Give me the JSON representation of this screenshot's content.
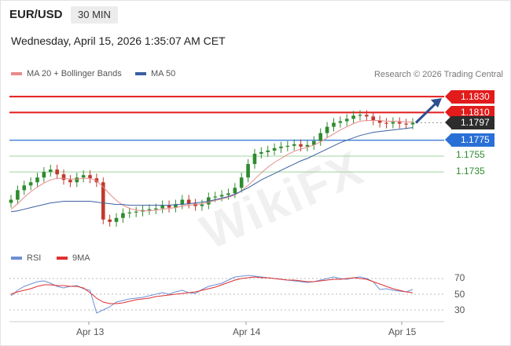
{
  "header": {
    "pair": "EUR/USD",
    "timeframe": "30 MIN",
    "datetime": "Wednesday, April 15, 2026 1:35:07 AM CET",
    "research": "Research © 2026 Trading Central"
  },
  "legend": {
    "ma20": "MA 20 + Bollinger Bands",
    "ma50": "MA 50",
    "ma20_color": "#e88a8a",
    "ma50_color": "#3a5fa0"
  },
  "rsi_legend": {
    "rsi": "RSI",
    "ma9": "9MA",
    "rsi_color": "#6d8fd6",
    "ma9_color": "#e03030"
  },
  "watermark": "WikiFX",
  "colors": {
    "resistance": "#e21b1b",
    "support": "#2a6fd6",
    "target_green": "#2e8b2e",
    "last_price_bg": "#2d2d2d",
    "candle_up": "#2e8b2e",
    "candle_down": "#c0392b"
  },
  "chart_data": [
    {
      "type": "candlestick",
      "title": "EUR/USD",
      "timeframe": "30 MIN",
      "x_labels": [
        "Apr 13",
        "Apr 14",
        "Apr 15"
      ],
      "ylim": [
        1.1655,
        1.1845
      ],
      "levels": [
        {
          "label": "1.1830",
          "value": 1.183,
          "kind": "resistance"
        },
        {
          "label": "1.1810",
          "value": 1.181,
          "kind": "resistance"
        },
        {
          "label": "1.1797",
          "value": 1.1797,
          "kind": "last_price"
        },
        {
          "label": "1.1775",
          "value": 1.1775,
          "kind": "pivot"
        },
        {
          "label": "1.1755",
          "value": 1.1755,
          "kind": "support"
        },
        {
          "label": "1.1735",
          "value": 1.1735,
          "kind": "support"
        }
      ],
      "close_series": [
        1.17,
        1.1712,
        1.1718,
        1.1722,
        1.1728,
        1.1735,
        1.1738,
        1.1732,
        1.1725,
        1.1722,
        1.1728,
        1.1731,
        1.1727,
        1.1722,
        1.1675,
        1.1672,
        1.1677,
        1.1683,
        1.1684,
        1.1685,
        1.1687,
        1.1688,
        1.1689,
        1.1693,
        1.169,
        1.1694,
        1.17,
        1.1695,
        1.1692,
        1.1694,
        1.1703,
        1.1704,
        1.1706,
        1.1708,
        1.1715,
        1.1728,
        1.1745,
        1.1758,
        1.176,
        1.1762,
        1.1765,
        1.1767,
        1.1768,
        1.177,
        1.1767,
        1.1769,
        1.1774,
        1.1784,
        1.1792,
        1.1797,
        1.1799,
        1.1802,
        1.1806,
        1.1807,
        1.1805,
        1.18,
        1.1797,
        1.1796,
        1.1798,
        1.1796,
        1.1795,
        1.1797
      ],
      "ma20_series": [
        1.1688,
        1.1695,
        1.1703,
        1.171,
        1.1716,
        1.1721,
        1.1725,
        1.1727,
        1.1727,
        1.1726,
        1.1726,
        1.1727,
        1.1727,
        1.1724,
        1.1716,
        1.1707,
        1.1699,
        1.1693,
        1.1689,
        1.1687,
        1.1686,
        1.1686,
        1.1687,
        1.1688,
        1.1689,
        1.169,
        1.1692,
        1.1693,
        1.1694,
        1.1695,
        1.1697,
        1.1699,
        1.1701,
        1.1703,
        1.1706,
        1.1711,
        1.1718,
        1.1726,
        1.1734,
        1.1741,
        1.1747,
        1.1752,
        1.1757,
        1.1761,
        1.1764,
        1.1766,
        1.1769,
        1.1773,
        1.1778,
        1.1783,
        1.1788,
        1.1792,
        1.1796,
        1.1799,
        1.18,
        1.18,
        1.18,
        1.1799,
        1.1799,
        1.1799,
        1.1798,
        1.1798
      ],
      "ma50_series": [
        1.1685,
        1.1686,
        1.1688,
        1.169,
        1.1692,
        1.1694,
        1.1696,
        1.1697,
        1.1698,
        1.1698,
        1.1698,
        1.1698,
        1.1698,
        1.1697,
        1.1696,
        1.1695,
        1.1694,
        1.1694,
        1.1693,
        1.1693,
        1.1693,
        1.1693,
        1.1693,
        1.1693,
        1.1693,
        1.1694,
        1.1694,
        1.1695,
        1.1696,
        1.1697,
        1.1698,
        1.17,
        1.1702,
        1.1704,
        1.1707,
        1.1711,
        1.1715,
        1.172,
        1.1725,
        1.1729,
        1.1733,
        1.1737,
        1.1741,
        1.1745,
        1.1749,
        1.1752,
        1.1756,
        1.176,
        1.1764,
        1.1768,
        1.1772,
        1.1775,
        1.1778,
        1.1781,
        1.1783,
        1.1785,
        1.1786,
        1.1787,
        1.1788,
        1.1789,
        1.179,
        1.1791
      ],
      "projection": {
        "from": 1.1797,
        "to": 1.183
      }
    },
    {
      "type": "line",
      "title": "RSI",
      "ylim": [
        20,
        85
      ],
      "y_ticks": [
        "70",
        "50",
        "30"
      ],
      "rsi_series": [
        48,
        55,
        60,
        63,
        66,
        67,
        64,
        60,
        58,
        60,
        61,
        57,
        55,
        26,
        30,
        34,
        40,
        42,
        44,
        45,
        46,
        48,
        50,
        52,
        50,
        53,
        55,
        52,
        51,
        56,
        60,
        62,
        64,
        68,
        72,
        73,
        74,
        73,
        72,
        71,
        70,
        69,
        68,
        67,
        66,
        65,
        66,
        68,
        70,
        72,
        70,
        69,
        71,
        72,
        70,
        66,
        56,
        57,
        55,
        54,
        53,
        56
      ],
      "ma9_series": [
        50,
        53,
        55,
        57,
        60,
        62,
        62,
        61,
        61,
        60,
        60,
        58,
        52,
        45,
        40,
        38,
        38,
        39,
        41,
        43,
        44,
        45,
        47,
        48,
        49,
        50,
        51,
        52,
        53,
        55,
        57,
        59,
        62,
        65,
        68,
        70,
        71,
        72,
        71,
        71,
        70,
        69,
        68,
        68,
        67,
        66,
        66,
        67,
        68,
        69,
        69,
        70,
        71,
        70,
        69,
        66,
        63,
        60,
        57,
        55,
        53,
        52
      ]
    }
  ]
}
